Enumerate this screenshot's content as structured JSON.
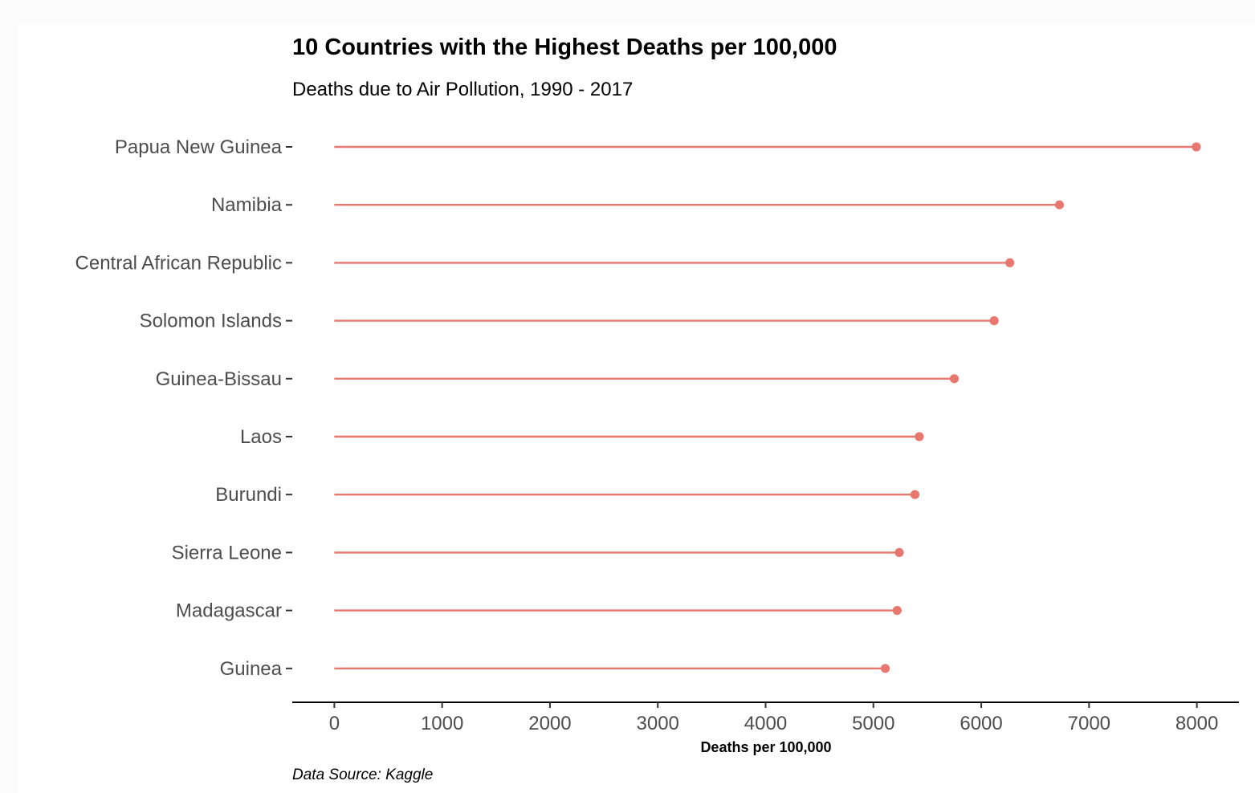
{
  "chart_data": {
    "type": "lollipop",
    "title": "10 Countries with the Highest Deaths per 100,000",
    "subtitle": "Deaths due to Air Pollution, 1990 - 2017",
    "xlabel": "Deaths per 100,000",
    "caption": "Data Source: Kaggle",
    "categories": [
      "Papua New Guinea",
      "Namibia",
      "Central African Republic",
      "Solomon Islands",
      "Guinea-Bissau",
      "Laos",
      "Burundi",
      "Sierra Leone",
      "Madagascar",
      "Guinea"
    ],
    "values": [
      7995,
      6725,
      6265,
      6120,
      5750,
      5425,
      5385,
      5240,
      5220,
      5110
    ],
    "xticks": [
      0,
      1000,
      2000,
      3000,
      4000,
      5000,
      6000,
      7000,
      8000
    ],
    "xlim": [
      -390,
      8390
    ],
    "grid": false,
    "legend": "none",
    "color": "#e8776f",
    "axis_color": "#000000"
  }
}
